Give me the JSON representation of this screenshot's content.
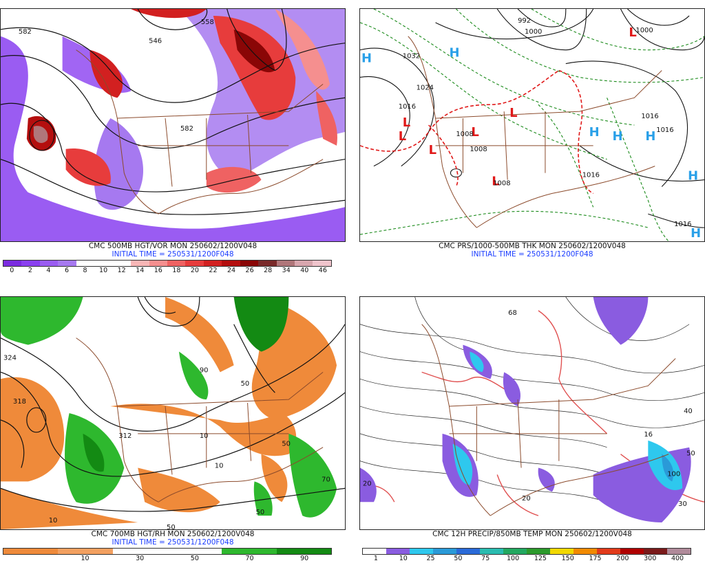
{
  "panels": {
    "p1": {
      "title": "CMC 500MB HGT/VOR MON 250602/1200V048",
      "init": "INITIAL TIME = 250531/1200F048",
      "scale_colors": [
        "#7b2be0",
        "#8a3ff0",
        "#9a5cf2",
        "#a679f0",
        "#ffffff",
        "#ffffff",
        "#ffffff",
        "#f8b6b6",
        "#f58f8f",
        "#ef6262",
        "#e73c3c",
        "#d22020",
        "#b40e0e",
        "#8a0606",
        "#7a2a2a",
        "#b0767a",
        "#d8a6ae",
        "#f0c4cc"
      ],
      "scale_ticks": [
        "0",
        "2",
        "4",
        "6",
        "8",
        "10",
        "12",
        "14",
        "16",
        "18",
        "20",
        "22",
        "24",
        "26",
        "28",
        "34",
        "40",
        "46"
      ],
      "labels": [
        "582",
        "546",
        "558",
        "582"
      ]
    },
    "p2": {
      "title": "CMC PRS/1000-500MB THK MON 250602/1200V048",
      "init": "INITIAL TIME = 250531/1200F048",
      "labels": [
        "1032",
        "1024",
        "1016",
        "1008",
        "1008",
        "1000",
        "992",
        "1008",
        "1016",
        "1016",
        "1016",
        "1016",
        "1000"
      ]
    },
    "p3": {
      "title": "CMC 700MB HGT/RH MON 250602/1200V048",
      "init": "INITIAL TIME = 250531/1200F048",
      "scale_colors": [
        "#ef8a3a",
        "#ef8a3a",
        "#f3a060",
        "#f3a060",
        "#ffffff",
        "#ffffff",
        "#ffffff",
        "#ffffff",
        "#2eb82e",
        "#2eb82e",
        "#138a13",
        "#138a13"
      ],
      "scale_ticks": [
        "",
        "10",
        "30",
        "50",
        "70",
        "90"
      ],
      "labels": [
        "324",
        "318",
        "312",
        "90",
        "50",
        "10",
        "10",
        "50",
        "50",
        "70",
        "10",
        "50"
      ]
    },
    "p4": {
      "title": "CMC 12H PRECIP/850MB TEMP MON 250602/1200V048",
      "scale_colors": [
        "#ffffff",
        "#8a5ce0",
        "#2ec8ee",
        "#2a9ad8",
        "#2a6ad8",
        "#2abcb0",
        "#22a860",
        "#2c9a2c",
        "#f2d800",
        "#f28a00",
        "#e23a1a",
        "#b00000",
        "#7a1a1a",
        "#b08a9a"
      ],
      "scale_ticks": [
        "1",
        "10",
        "25",
        "50",
        "75",
        "100",
        "125",
        "150",
        "175",
        "200",
        "300",
        "400"
      ],
      "labels": [
        "68",
        "40",
        "16",
        "100",
        "20",
        "30",
        "50",
        "20"
      ]
    }
  }
}
